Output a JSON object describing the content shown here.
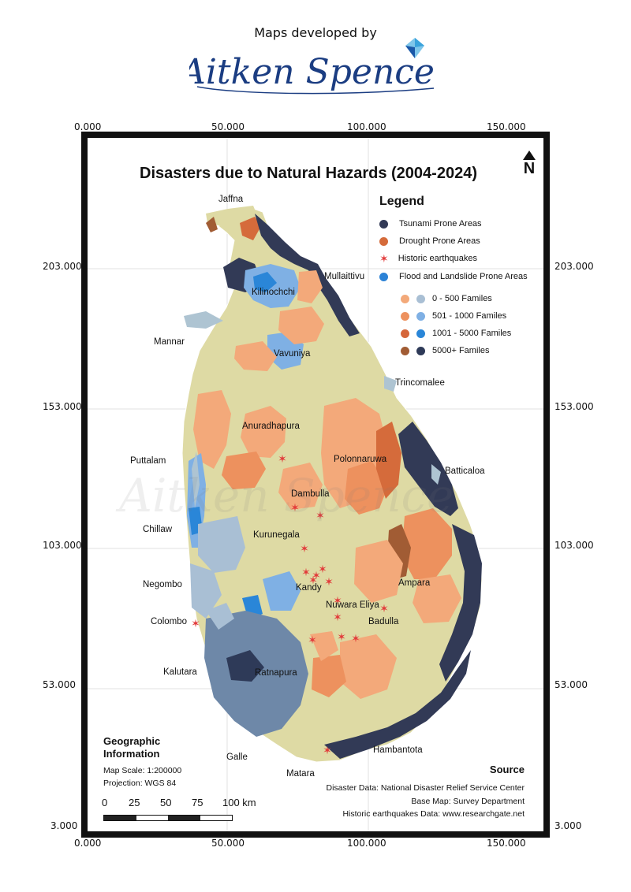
{
  "header": {
    "credit_text": "Maps developed by",
    "brand_name": "Aitken Spence"
  },
  "map": {
    "title": "Disasters due to Natural Hazards (2004-2024)",
    "north_label": "N",
    "x_ticks": [
      "0.000",
      "50.000",
      "100.000",
      "150.000"
    ],
    "y_ticks": [
      "203.000",
      "153.000",
      "103.000",
      "53.000",
      "3.000"
    ],
    "colors": {
      "land": "#dedaa4",
      "water": "#aec4d2",
      "tsunami": "#323a56",
      "drought": "#d56b3b",
      "earthquake": "#e23a3a",
      "flood": "#2c82d6",
      "range_0_500_orange": "#f3a97a",
      "range_0_500_blue": "#a9bfd4",
      "range_501_1000_orange": "#ed915e",
      "range_501_1000_blue": "#7fb0e4",
      "range_1001_5000_orange": "#d5663a",
      "range_1001_5000_blue": "#2a86d8",
      "range_5000_brown": "#a15c34",
      "range_5000_navy": "#2e3a58"
    }
  },
  "legend": {
    "title": "Legend",
    "items": [
      {
        "label": "Tsunami Prone Areas",
        "icon": "dot"
      },
      {
        "label": "Drought Prone Areas",
        "icon": "dot"
      },
      {
        "label": "Historic earthquakes",
        "icon": "star"
      },
      {
        "label": "Flood and Landslide Prone Areas",
        "icon": "dot"
      }
    ],
    "ranges": [
      {
        "label": "0 - 500  Familes"
      },
      {
        "label": "501 - 1000  Familes"
      },
      {
        "label": "1001 - 5000  Familes"
      },
      {
        "label": "5000+  Familes"
      }
    ]
  },
  "places": [
    "Jaffna",
    "Mullaittivu",
    "Kilinochchi",
    "Mannar",
    "Vavuniya",
    "Trincomalee",
    "Anuradhapura",
    "Puttalam",
    "Polonnaruwa",
    "Batticaloa",
    "Dambulla",
    "Chillaw",
    "Kurunegala",
    "Negombo",
    "Kandy",
    "Ampara",
    "Nuwara Eliya",
    "Colombo",
    "Badulla",
    "Kalutara",
    "Ratnapura",
    "Hambantota",
    "Galle",
    "Matara"
  ],
  "geographic_info": {
    "title": "Geographic Information",
    "scale": "Map Scale: 1:200000",
    "projection": "Projection:  WGS 84"
  },
  "scale_bar": {
    "labels": [
      "0",
      "25",
      "50",
      "75",
      "100 km"
    ]
  },
  "source": {
    "title": "Source",
    "lines": [
      "Disaster Data: National Disaster Relief Service Center",
      "Base Map: Survey Department",
      "Historic earthquakes Data: www.researchgate.net"
    ]
  }
}
